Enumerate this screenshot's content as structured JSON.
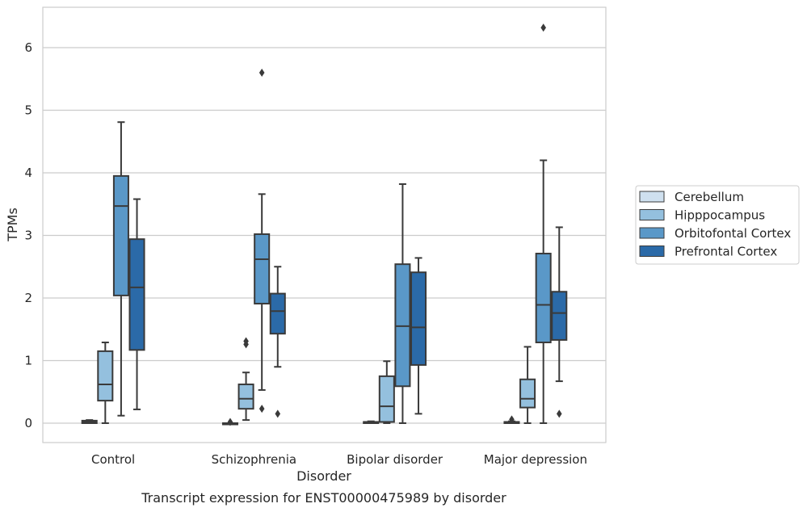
{
  "chart_data": {
    "type": "box",
    "caption": "Transcript expression for ENST00000475989 by disorder",
    "xlabel": "Disorder",
    "ylabel": "TPMs",
    "ylim": [
      -0.3,
      6.65
    ],
    "yticks": [
      0,
      1,
      2,
      3,
      4,
      5,
      6
    ],
    "grid": "horizontal",
    "legend_position": "right",
    "categories": [
      "Control",
      "Schizophrenia",
      "Bipolar disorder",
      "Major depression"
    ],
    "series": [
      {
        "name": "Cerebellum",
        "color": "#cfe0ef",
        "boxes": [
          {
            "whisker_low": 0.0,
            "q1": 0.0,
            "median": 0.02,
            "q3": 0.04,
            "whisker_high": 0.05,
            "outliers": []
          },
          {
            "whisker_low": 0.0,
            "q1": 0.0,
            "median": 0.0,
            "q3": 0.0,
            "whisker_high": 0.0,
            "outliers": [
              0.02
            ]
          },
          {
            "whisker_low": 0.0,
            "q1": 0.0,
            "median": 0.01,
            "q3": 0.02,
            "whisker_high": 0.03,
            "outliers": []
          },
          {
            "whisker_low": 0.0,
            "q1": 0.0,
            "median": 0.01,
            "q3": 0.02,
            "whisker_high": 0.03,
            "outliers": [
              0.06
            ]
          }
        ]
      },
      {
        "name": "Hipppocampus",
        "color": "#94c0de",
        "boxes": [
          {
            "whisker_low": 0.0,
            "q1": 0.36,
            "median": 0.62,
            "q3": 1.15,
            "whisker_high": 1.29,
            "outliers": []
          },
          {
            "whisker_low": 0.05,
            "q1": 0.23,
            "median": 0.39,
            "q3": 0.62,
            "whisker_high": 0.81,
            "outliers": [
              1.26,
              1.31
            ]
          },
          {
            "whisker_low": 0.0,
            "q1": 0.02,
            "median": 0.27,
            "q3": 0.75,
            "whisker_high": 0.99,
            "outliers": []
          },
          {
            "whisker_low": 0.0,
            "q1": 0.25,
            "median": 0.39,
            "q3": 0.7,
            "whisker_high": 1.22,
            "outliers": []
          }
        ]
      },
      {
        "name": "Orbitofontal Cortex",
        "color": "#5a98c8",
        "boxes": [
          {
            "whisker_low": 0.12,
            "q1": 2.04,
            "median": 3.47,
            "q3": 3.95,
            "whisker_high": 4.81,
            "outliers": []
          },
          {
            "whisker_low": 0.53,
            "q1": 1.91,
            "median": 2.62,
            "q3": 3.02,
            "whisker_high": 3.66,
            "outliers": [
              5.6,
              0.23
            ]
          },
          {
            "whisker_low": 0.0,
            "q1": 0.59,
            "median": 1.55,
            "q3": 2.54,
            "whisker_high": 3.82,
            "outliers": []
          },
          {
            "whisker_low": 0.0,
            "q1": 1.29,
            "median": 1.89,
            "q3": 2.71,
            "whisker_high": 4.2,
            "outliers": [
              6.32
            ]
          }
        ]
      },
      {
        "name": "Prefrontal Cortex",
        "color": "#2b6aa8",
        "boxes": [
          {
            "whisker_low": 0.22,
            "q1": 1.17,
            "median": 2.17,
            "q3": 2.94,
            "whisker_high": 3.58,
            "outliers": []
          },
          {
            "whisker_low": 0.9,
            "q1": 1.43,
            "median": 1.79,
            "q3": 2.07,
            "whisker_high": 2.5,
            "outliers": [
              0.15
            ]
          },
          {
            "whisker_low": 0.15,
            "q1": 0.93,
            "median": 1.53,
            "q3": 2.41,
            "whisker_high": 2.64,
            "outliers": []
          },
          {
            "whisker_low": 0.67,
            "q1": 1.33,
            "median": 1.76,
            "q3": 2.1,
            "whisker_high": 3.13,
            "outliers": [
              0.15
            ]
          }
        ]
      }
    ]
  }
}
